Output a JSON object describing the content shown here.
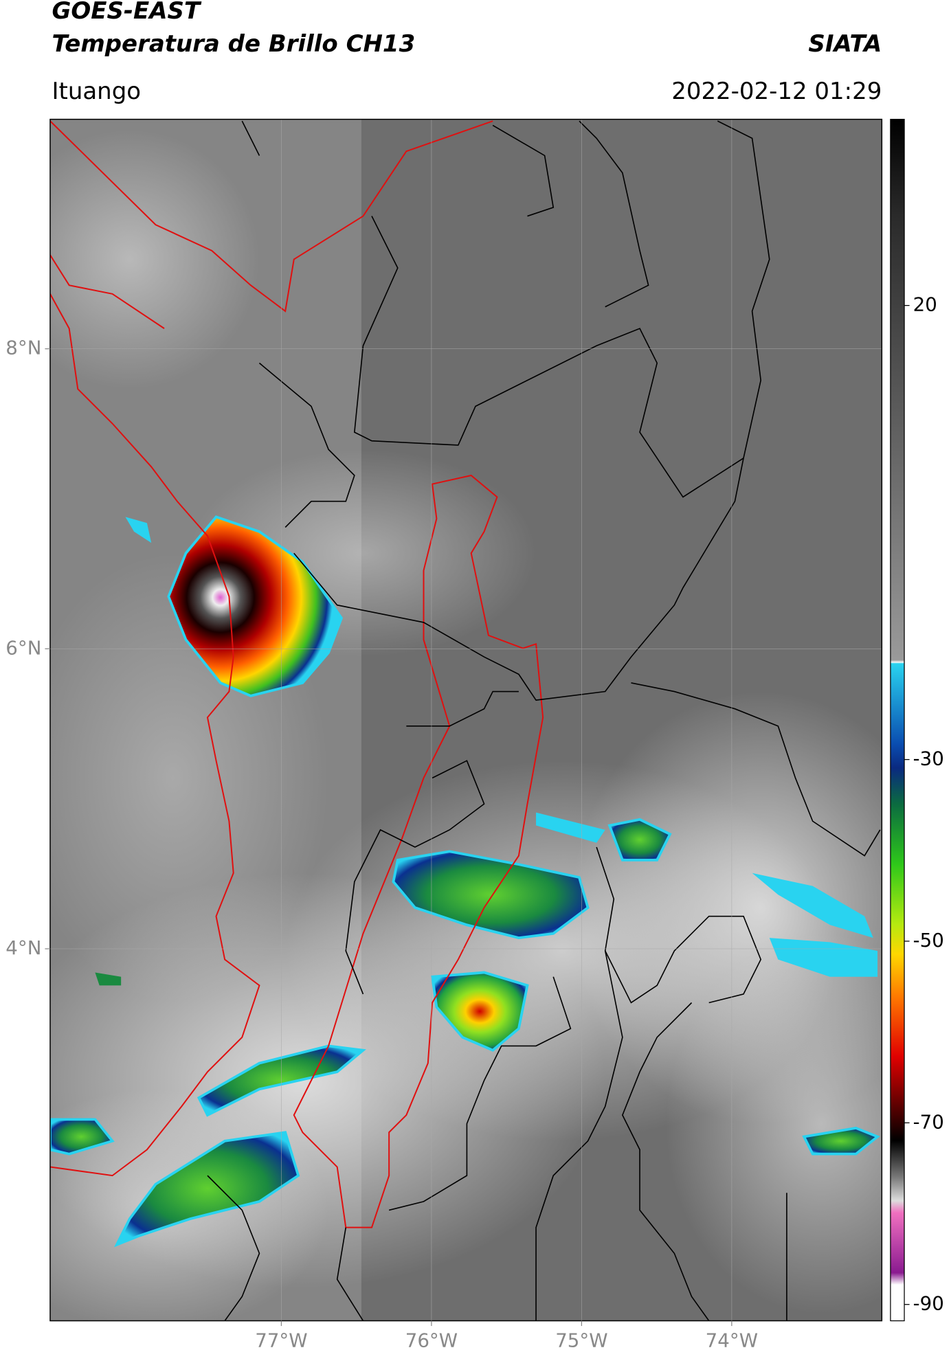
{
  "chart_data": {
    "type": "map",
    "title": "GOES-EAST",
    "subtitle": "Temperatura de Brillo CH13",
    "source": "SIATA",
    "location": "Ituango",
    "datetime": "2022-02-12 01:29",
    "xlim": [
      -78.54,
      -73.0
    ],
    "ylim": [
      1.52,
      9.53
    ],
    "xticks": [
      {
        "value": -77,
        "label": "77°W"
      },
      {
        "value": -76,
        "label": "76°W"
      },
      {
        "value": -75,
        "label": "75°W"
      },
      {
        "value": -74,
        "label": "74°W"
      }
    ],
    "yticks": [
      {
        "value": 4,
        "label": "4°N"
      },
      {
        "value": 6,
        "label": "6°N"
      },
      {
        "value": 8,
        "label": "8°N"
      }
    ],
    "grid": true,
    "colorbar": {
      "lim": [
        -91.8,
        40.5
      ],
      "ticks": [
        -90,
        -70,
        -50,
        -30,
        20
      ]
    }
  }
}
